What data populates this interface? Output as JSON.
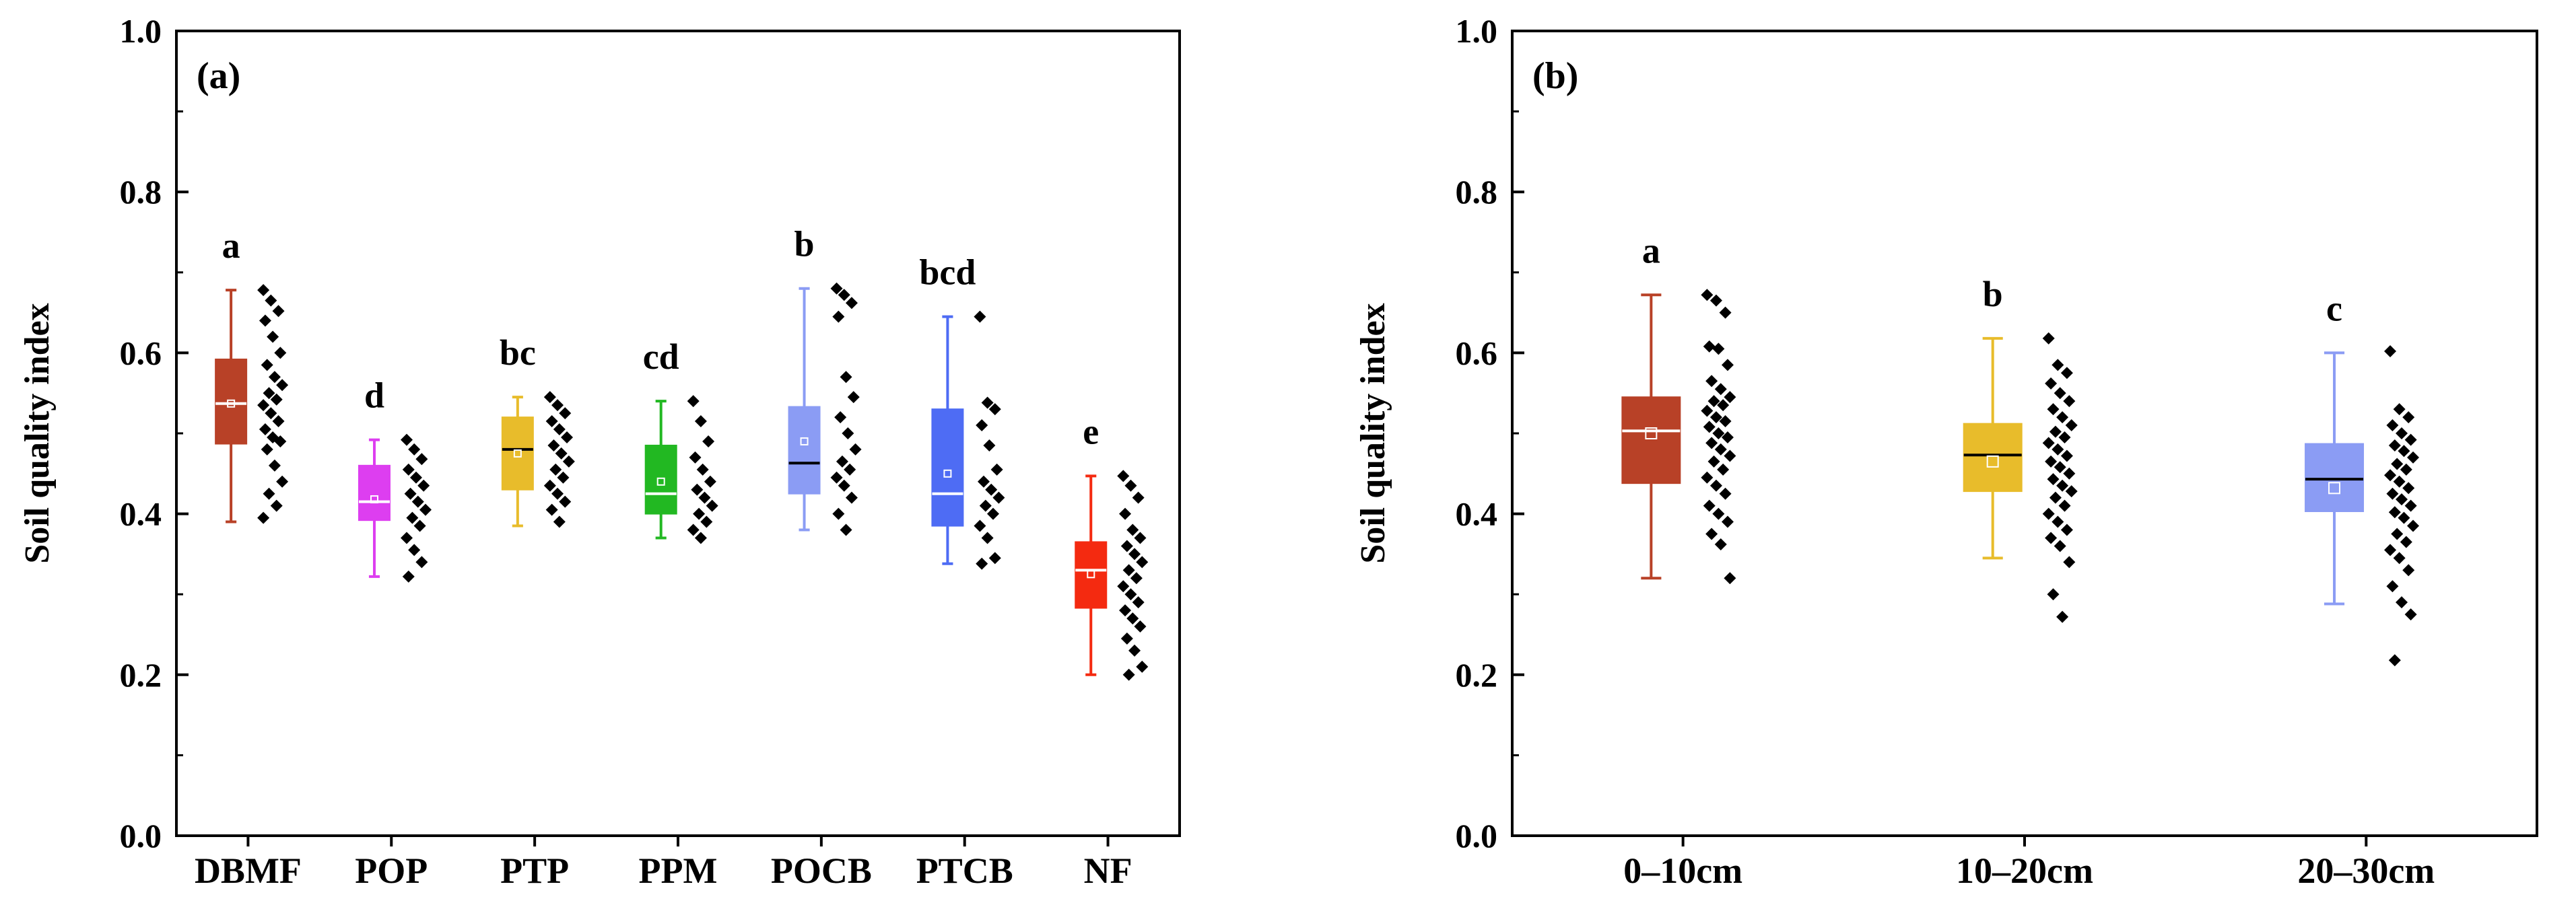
{
  "chart_data": [
    {
      "type": "box",
      "panel_label": "(a)",
      "ylabel": "Soil quality index",
      "xlabel": "",
      "ylim": [
        0.0,
        1.0
      ],
      "yticks": [
        "0.0",
        "0.2",
        "0.4",
        "0.6",
        "0.8",
        "1.0"
      ],
      "grid": false,
      "categories": [
        "DBMF",
        "POP",
        "PTP",
        "PPM",
        "POCB",
        "PTCB",
        "NF"
      ],
      "groups": [
        {
          "name": "DBMF",
          "color": "#B84127",
          "median_color": "#ffffff",
          "min": 0.39,
          "q1": 0.487,
          "median": 0.537,
          "q3": 0.592,
          "max": 0.678,
          "mean": 0.537,
          "letter": "a",
          "points": [
            0.678,
            0.665,
            0.652,
            0.64,
            0.62,
            0.6,
            0.585,
            0.57,
            0.56,
            0.55,
            0.542,
            0.535,
            0.525,
            0.515,
            0.505,
            0.495,
            0.49,
            0.48,
            0.46,
            0.44,
            0.425,
            0.41,
            0.395
          ]
        },
        {
          "name": "POP",
          "color": "#DD3EF0",
          "median_color": "#ffffff",
          "min": 0.322,
          "q1": 0.392,
          "median": 0.415,
          "q3": 0.46,
          "max": 0.492,
          "mean": 0.418,
          "letter": "d",
          "points": [
            0.492,
            0.48,
            0.468,
            0.455,
            0.445,
            0.435,
            0.425,
            0.415,
            0.405,
            0.395,
            0.385,
            0.37,
            0.355,
            0.34,
            0.322
          ]
        },
        {
          "name": "PTP",
          "color": "#E8BC2B",
          "median_color": "#000000",
          "min": 0.385,
          "q1": 0.43,
          "median": 0.48,
          "q3": 0.52,
          "max": 0.545,
          "mean": 0.475,
          "letter": "bc",
          "points": [
            0.545,
            0.535,
            0.525,
            0.515,
            0.505,
            0.495,
            0.485,
            0.475,
            0.465,
            0.455,
            0.445,
            0.435,
            0.425,
            0.415,
            0.405,
            0.39
          ]
        },
        {
          "name": "PPM",
          "color": "#22B822",
          "median_color": "#ffffff",
          "min": 0.37,
          "q1": 0.4,
          "median": 0.425,
          "q3": 0.485,
          "max": 0.54,
          "mean": 0.44,
          "letter": "cd",
          "points": [
            0.54,
            0.515,
            0.49,
            0.47,
            0.455,
            0.44,
            0.43,
            0.42,
            0.41,
            0.4,
            0.39,
            0.38,
            0.37
          ]
        },
        {
          "name": "POCB",
          "color": "#8B9CF4",
          "median_color": "#000000",
          "min": 0.38,
          "q1": 0.425,
          "median": 0.463,
          "q3": 0.533,
          "max": 0.68,
          "mean": 0.49,
          "letter": "b",
          "points": [
            0.68,
            0.672,
            0.662,
            0.645,
            0.57,
            0.545,
            0.52,
            0.5,
            0.48,
            0.465,
            0.455,
            0.445,
            0.435,
            0.42,
            0.4,
            0.38
          ]
        },
        {
          "name": "PTCB",
          "color": "#4E6CF4",
          "median_color": "#ffffff",
          "min": 0.338,
          "q1": 0.385,
          "median": 0.425,
          "q3": 0.53,
          "max": 0.645,
          "mean": 0.45,
          "letter": "bcd",
          "points": [
            0.645,
            0.538,
            0.53,
            0.51,
            0.485,
            0.455,
            0.44,
            0.43,
            0.42,
            0.41,
            0.4,
            0.385,
            0.37,
            0.345,
            0.338
          ]
        },
        {
          "name": "NF",
          "color": "#F42A10",
          "median_color": "#ffffff",
          "min": 0.2,
          "q1": 0.283,
          "median": 0.33,
          "q3": 0.365,
          "max": 0.447,
          "mean": 0.325,
          "letter": "e",
          "points": [
            0.447,
            0.435,
            0.42,
            0.4,
            0.38,
            0.37,
            0.36,
            0.35,
            0.34,
            0.33,
            0.32,
            0.31,
            0.3,
            0.29,
            0.28,
            0.27,
            0.26,
            0.245,
            0.23,
            0.21,
            0.2
          ]
        }
      ]
    },
    {
      "type": "box",
      "panel_label": "(b)",
      "ylabel": "Soil quality index",
      "xlabel": "",
      "ylim": [
        0.0,
        1.0
      ],
      "yticks": [
        "0.0",
        "0.2",
        "0.4",
        "0.6",
        "0.8",
        "1.0"
      ],
      "grid": false,
      "categories": [
        "0–10cm",
        "10–20cm",
        "20–30cm"
      ],
      "groups": [
        {
          "name": "0–10cm",
          "color": "#B84127",
          "median_color": "#ffffff",
          "min": 0.32,
          "q1": 0.438,
          "median": 0.503,
          "q3": 0.545,
          "max": 0.672,
          "mean": 0.5,
          "letter": "a",
          "points": [
            0.672,
            0.665,
            0.65,
            0.608,
            0.605,
            0.585,
            0.565,
            0.555,
            0.545,
            0.54,
            0.535,
            0.528,
            0.52,
            0.515,
            0.508,
            0.5,
            0.495,
            0.488,
            0.48,
            0.472,
            0.465,
            0.455,
            0.445,
            0.435,
            0.425,
            0.41,
            0.4,
            0.39,
            0.375,
            0.362,
            0.32
          ]
        },
        {
          "name": "10–20cm",
          "color": "#E8BC2B",
          "median_color": "#000000",
          "min": 0.345,
          "q1": 0.428,
          "median": 0.473,
          "q3": 0.512,
          "max": 0.618,
          "mean": 0.465,
          "letter": "b",
          "points": [
            0.618,
            0.585,
            0.575,
            0.562,
            0.55,
            0.54,
            0.53,
            0.52,
            0.51,
            0.502,
            0.495,
            0.488,
            0.48,
            0.472,
            0.465,
            0.458,
            0.45,
            0.443,
            0.435,
            0.428,
            0.42,
            0.41,
            0.4,
            0.39,
            0.38,
            0.37,
            0.36,
            0.34,
            0.3,
            0.272
          ]
        },
        {
          "name": "20–30cm",
          "color": "#8B9CF4",
          "median_color": "#000000",
          "min": 0.288,
          "q1": 0.403,
          "median": 0.443,
          "q3": 0.487,
          "max": 0.6,
          "mean": 0.432,
          "letter": "c",
          "points": [
            0.602,
            0.53,
            0.52,
            0.51,
            0.5,
            0.492,
            0.485,
            0.478,
            0.47,
            0.462,
            0.455,
            0.448,
            0.44,
            0.432,
            0.425,
            0.418,
            0.41,
            0.402,
            0.395,
            0.385,
            0.375,
            0.365,
            0.355,
            0.345,
            0.33,
            0.31,
            0.29,
            0.275,
            0.218
          ]
        }
      ]
    }
  ]
}
